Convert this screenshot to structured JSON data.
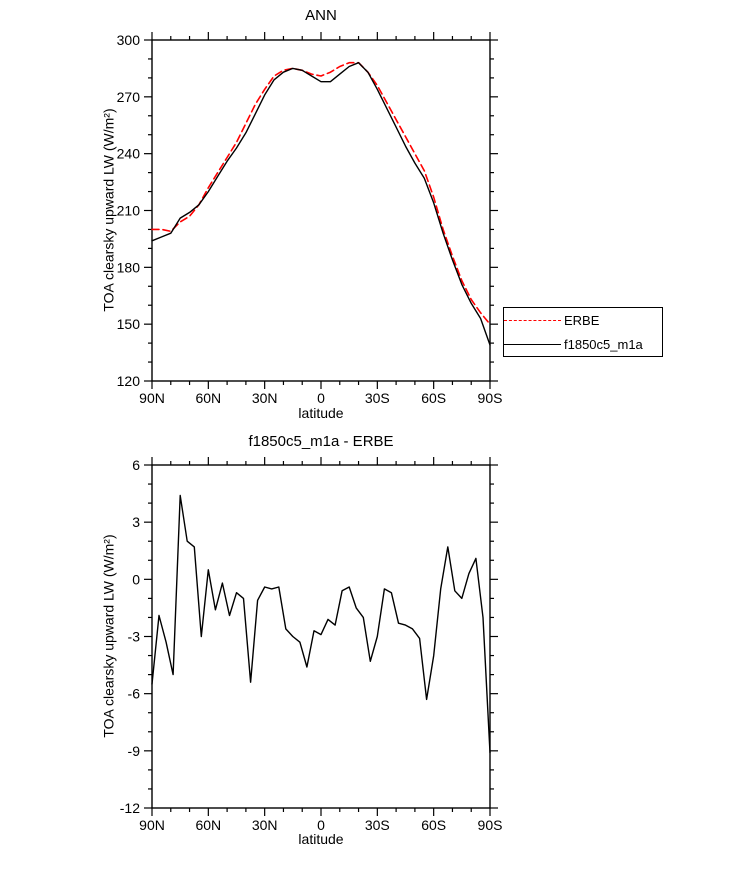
{
  "chart_data": [
    {
      "type": "line",
      "title": "ANN",
      "xlabel": "latitude",
      "ylabel": "TOA clearsky upward LW (W/m²)",
      "xlim": [
        90,
        -90
      ],
      "ylim": [
        120,
        300
      ],
      "yticks": [
        120,
        150,
        180,
        210,
        240,
        270,
        300
      ],
      "xticks": [
        90,
        60,
        30,
        0,
        -30,
        -60,
        -90
      ],
      "xtick_labels": [
        "90N",
        "60N",
        "30N",
        "0",
        "30S",
        "60S",
        "90S"
      ],
      "minor_x": 10,
      "minor_y": 10,
      "grid": false,
      "legend_position": "outside-right",
      "x": [
        90,
        85,
        80,
        75,
        70,
        65,
        60,
        55,
        50,
        45,
        40,
        35,
        30,
        25,
        20,
        15,
        10,
        5,
        0,
        -5,
        -10,
        -15,
        -20,
        -25,
        -30,
        -35,
        -40,
        -45,
        -50,
        -55,
        -60,
        -65,
        -70,
        -75,
        -80,
        -85,
        -90
      ],
      "series": [
        {
          "name": "ERBE",
          "color": "#ff0000",
          "dash": "7 4",
          "width": 1.6,
          "values": [
            200,
            200,
            199,
            204,
            207,
            213,
            222,
            230,
            238,
            246,
            256,
            266,
            274,
            281,
            284,
            285,
            284,
            282,
            281,
            283,
            286,
            288,
            288,
            283,
            276,
            267,
            258,
            249,
            240,
            231,
            217,
            200,
            186,
            173,
            163,
            156,
            150
          ]
        },
        {
          "name": "f1850c5_m1a",
          "color": "#000000",
          "dash": "",
          "width": 1.4,
          "values": [
            194,
            196,
            198,
            206,
            209,
            213,
            220,
            228,
            236,
            243,
            251,
            261,
            271,
            279,
            283,
            285,
            284,
            281,
            278,
            278,
            282,
            286,
            288,
            283,
            274,
            264,
            254,
            244,
            235,
            227,
            214,
            198,
            184,
            171,
            161,
            153,
            139
          ]
        }
      ]
    },
    {
      "type": "line",
      "title": "f1850c5_m1a - ERBE",
      "xlabel": "latitude",
      "ylabel": "TOA clearsky upward LW (W/m²)",
      "xlim": [
        90,
        -90
      ],
      "ylim": [
        -12,
        6
      ],
      "yticks": [
        -12,
        -9,
        -6,
        -3,
        0,
        3,
        6
      ],
      "xticks": [
        90,
        60,
        30,
        0,
        -30,
        -60,
        -90
      ],
      "xtick_labels": [
        "90N",
        "60N",
        "30N",
        "0",
        "30S",
        "60S",
        "90S"
      ],
      "minor_x": 10,
      "minor_y": 1,
      "grid": false,
      "x": [
        90,
        86.25,
        82.5,
        78.75,
        75,
        71.25,
        67.5,
        63.75,
        60,
        56.25,
        52.5,
        48.75,
        45,
        41.25,
        37.5,
        33.75,
        30,
        26.25,
        22.5,
        18.75,
        15,
        11.25,
        7.5,
        3.75,
        0,
        -3.75,
        -7.5,
        -11.25,
        -15,
        -18.75,
        -22.5,
        -26.25,
        -30,
        -33.75,
        -37.5,
        -41.25,
        -45,
        -48.75,
        -52.5,
        -56.25,
        -60,
        -63.75,
        -67.5,
        -71.25,
        -75,
        -78.75,
        -82.5,
        -86.25,
        -90
      ],
      "series": [
        {
          "name": "f1850c5_m1a - ERBE",
          "color": "#000000",
          "dash": "",
          "width": 1.4,
          "values": [
            -5.5,
            -1.9,
            -3.3,
            -5.0,
            4.4,
            2.0,
            1.7,
            -3.0,
            0.5,
            -1.6,
            -0.2,
            -1.9,
            -0.7,
            -1.0,
            -5.4,
            -1.1,
            -0.4,
            -0.5,
            -0.4,
            -2.6,
            -3.0,
            -3.3,
            -4.6,
            -2.7,
            -2.9,
            -2.1,
            -2.4,
            -0.6,
            -0.4,
            -1.5,
            -2.0,
            -4.3,
            -3.0,
            -0.5,
            -0.7,
            -2.3,
            -2.4,
            -2.6,
            -3.1,
            -6.3,
            -4.0,
            -0.5,
            1.7,
            -0.6,
            -1.0,
            0.3,
            1.1,
            -2.0,
            -9.1
          ]
        }
      ]
    }
  ],
  "colors": {
    "frame": "#000000",
    "background": "#ffffff",
    "erbe_red": "#ff0000"
  }
}
